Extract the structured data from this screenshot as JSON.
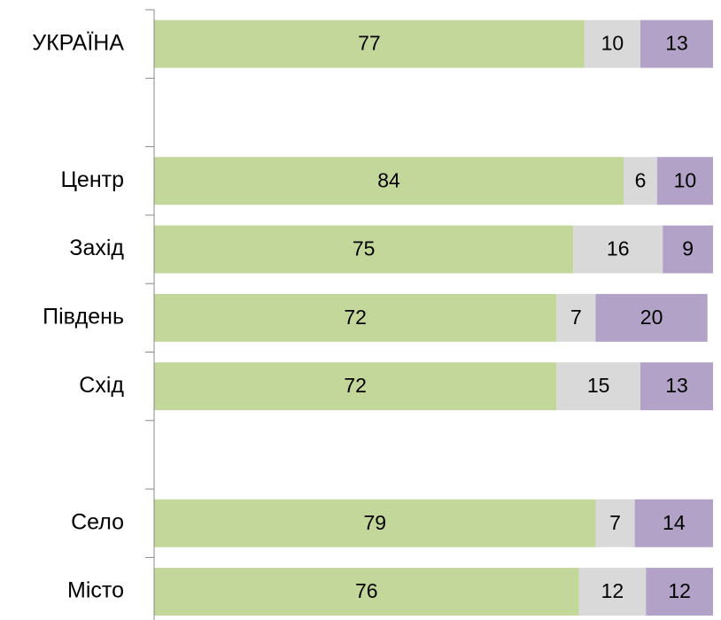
{
  "chart_data": {
    "type": "stacked-bar-horizontal",
    "categories": [
      "УКРАЇНА",
      null,
      "Центр",
      "Захід",
      "Південь",
      "Схід",
      null,
      "Село",
      "Місто"
    ],
    "series": [
      {
        "color": "#c4d79b",
        "values": [
          77,
          null,
          84,
          75,
          72,
          72,
          null,
          79,
          76
        ]
      },
      {
        "color": "#d9d9d9",
        "values": [
          10,
          null,
          6,
          16,
          7,
          15,
          null,
          7,
          12
        ]
      },
      {
        "color": "#b3a2c7",
        "values": [
          13,
          null,
          10,
          9,
          20,
          13,
          null,
          14,
          12
        ]
      }
    ],
    "xlim": [
      0,
      100
    ]
  }
}
